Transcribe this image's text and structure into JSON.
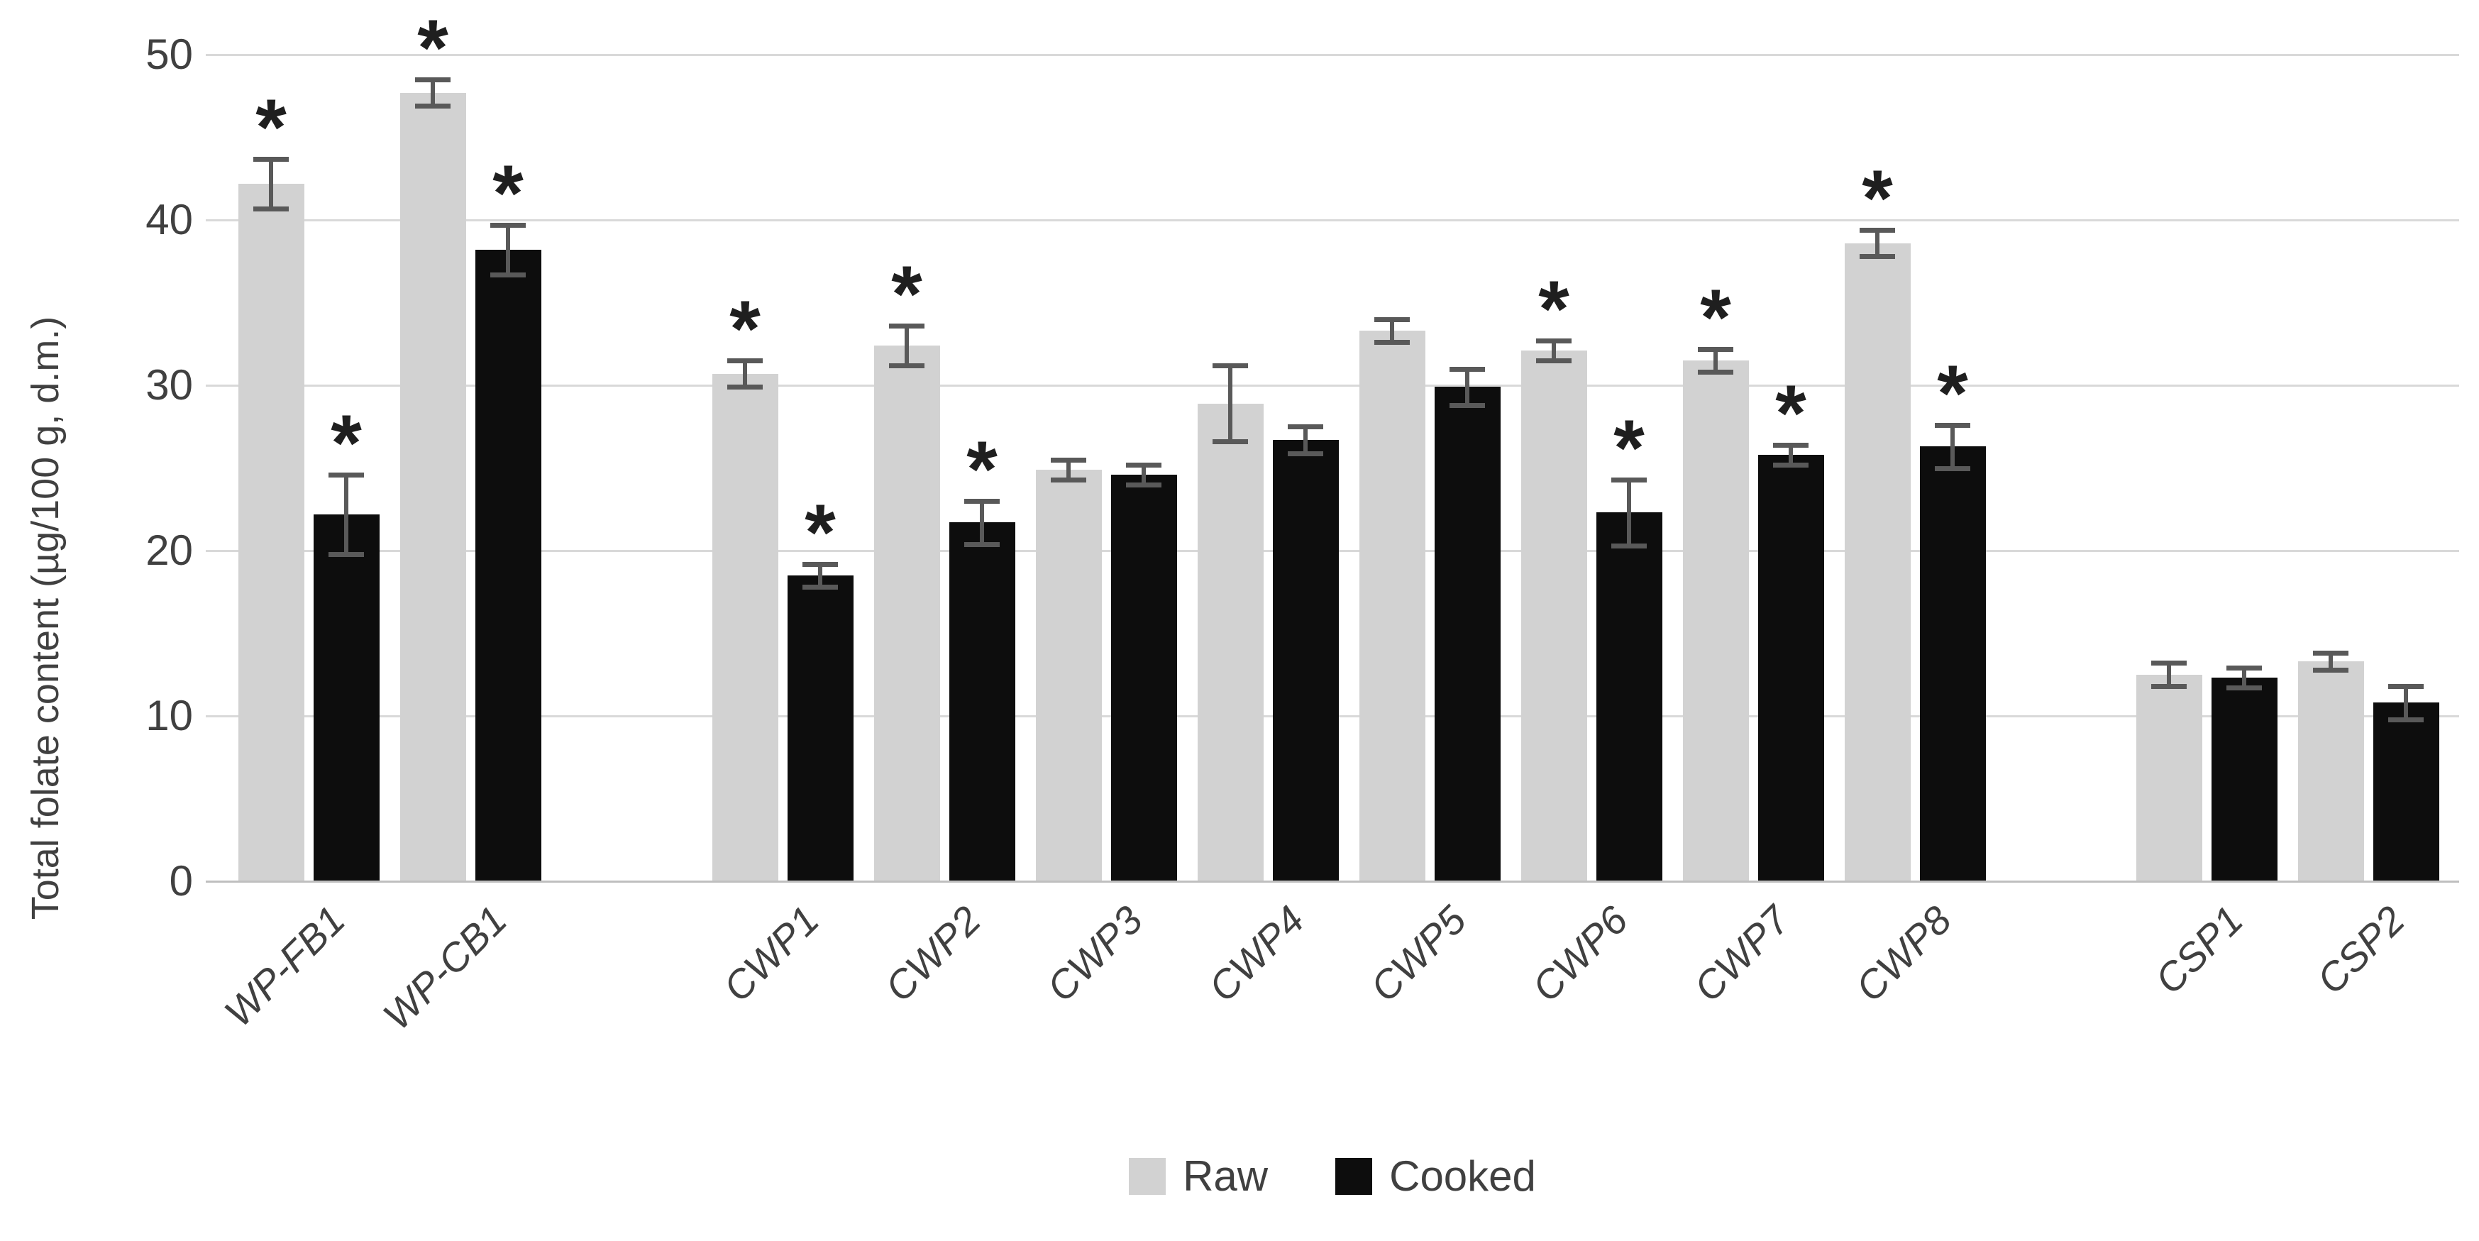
{
  "chart_data": {
    "type": "bar",
    "title": "",
    "xlabel": "",
    "ylabel": "Total folate content (µg/100 g, d.m.)",
    "ylim": [
      0,
      50
    ],
    "yticks": [
      0,
      10,
      20,
      30,
      40,
      50
    ],
    "grid": true,
    "legend_position": "bottom-center",
    "significance_marker": "*",
    "error_bar_color": "#595959",
    "categories": [
      "WP-FB1",
      "WP-CB1",
      "CWP1",
      "CWP2",
      "CWP3",
      "CWP4",
      "CWP5",
      "CWP6",
      "CWP7",
      "CWP8",
      "CSP1",
      "CSP2"
    ],
    "section_breaks_after_index": [
      1,
      9
    ],
    "series": [
      {
        "name": "Raw",
        "color": "#d2d2d2",
        "values": [
          42.2,
          47.7,
          30.7,
          32.4,
          24.9,
          28.9,
          33.3,
          32.1,
          31.5,
          38.6,
          12.5,
          13.3
        ],
        "errors": [
          1.5,
          0.8,
          0.8,
          1.2,
          0.6,
          2.3,
          0.7,
          0.6,
          0.7,
          0.8,
          0.7,
          0.5
        ],
        "significant": [
          true,
          true,
          true,
          true,
          false,
          false,
          false,
          true,
          true,
          true,
          false,
          false
        ]
      },
      {
        "name": "Cooked",
        "color": "#0d0d0d",
        "values": [
          22.2,
          38.2,
          18.5,
          21.7,
          24.6,
          26.7,
          29.9,
          22.3,
          25.8,
          26.3,
          12.3,
          10.8
        ],
        "errors": [
          2.4,
          1.5,
          0.7,
          1.3,
          0.6,
          0.8,
          1.1,
          2.0,
          0.6,
          1.3,
          0.6,
          1.0
        ],
        "significant": [
          true,
          true,
          true,
          true,
          false,
          false,
          false,
          true,
          true,
          true,
          false,
          false
        ]
      }
    ]
  }
}
